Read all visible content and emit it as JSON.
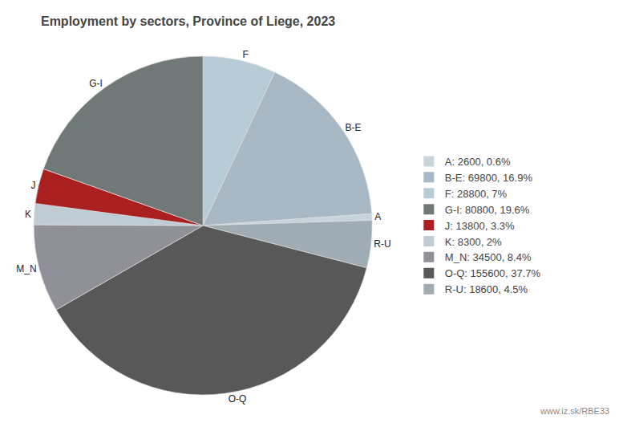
{
  "chart_data": {
    "type": "pie",
    "title": "Employment by sectors, Province of Liege, 2023",
    "categories": [
      "F",
      "B-E",
      "A",
      "R-U",
      "O-Q",
      "M_N",
      "K",
      "J",
      "G-I"
    ],
    "values": [
      28800,
      69800,
      2600,
      18600,
      155600,
      34500,
      8300,
      13800,
      80800
    ],
    "colors": [
      "#b8ccd8",
      "#a8b8c4",
      "#c8d4dc",
      "#a0acb4",
      "#585858",
      "#909098",
      "#c0ccd4",
      "#aa2020",
      "#707878"
    ],
    "legend": "right",
    "legend_entries": [
      {
        "category": "A",
        "label": "A: 2600, 0.6%"
      },
      {
        "category": "B-E",
        "label": "B-E: 69800, 16.9%"
      },
      {
        "category": "F",
        "label": "F: 28800, 7%"
      },
      {
        "category": "G-I",
        "label": "G-I: 80800, 19.6%"
      },
      {
        "category": "J",
        "label": "J: 13800, 3.3%"
      },
      {
        "category": "K",
        "label": "K: 8300, 2%"
      },
      {
        "category": "M_N",
        "label": "M_N: 34500, 8.4%"
      },
      {
        "category": "O-Q",
        "label": "O-Q: 155600, 37.7%"
      },
      {
        "category": "R-U",
        "label": "R-U: 18600, 4.5%"
      }
    ],
    "annotations": [
      "www.iz.sk/RBE33"
    ]
  }
}
